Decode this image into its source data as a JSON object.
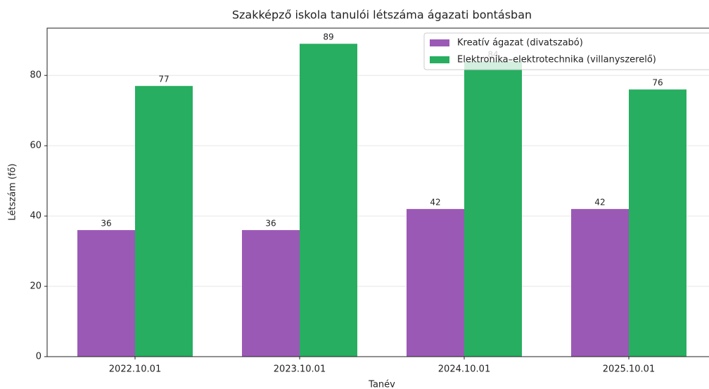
{
  "chart_data": {
    "type": "bar",
    "title": "Szakképző iskola tanulói létszáma ágazati bontásban",
    "xlabel": "Tanév",
    "ylabel": "Létszám (fő)",
    "categories": [
      "2022.10.01",
      "2023.10.01",
      "2024.10.01",
      "2025.10.01"
    ],
    "series": [
      {
        "name": "Kreatív ágazat (divatszabó)",
        "color": "#9b59b6",
        "values": [
          36,
          36,
          42,
          42
        ]
      },
      {
        "name": "Elektronika–elektrotechnika (villanyszerelő)",
        "color": "#27ae60",
        "values": [
          77,
          89,
          84,
          76
        ]
      }
    ],
    "ylim": [
      0,
      93.45
    ],
    "yticks": [
      0,
      20,
      40,
      60,
      80
    ],
    "grid": true,
    "legend": "upper right"
  }
}
